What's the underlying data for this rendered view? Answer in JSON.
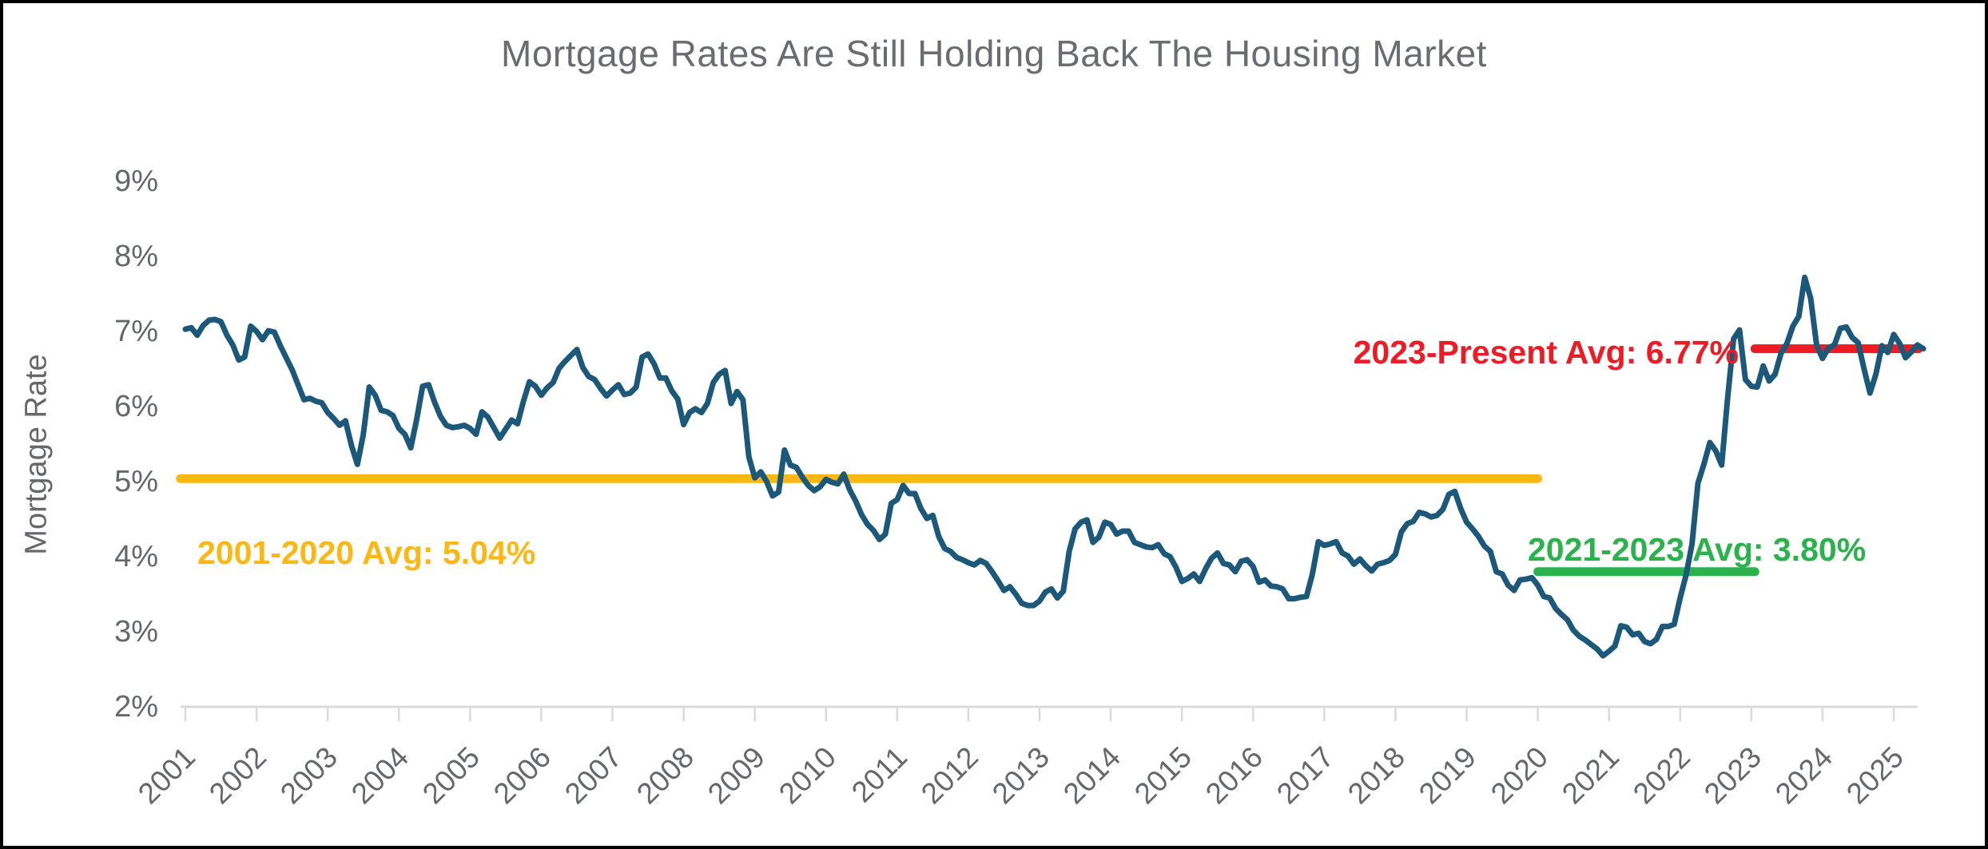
{
  "title": "Mortgage Rates Are Still Holding Back The Housing Market",
  "y_axis": {
    "label": "Mortgage Rate"
  },
  "chart_data": {
    "type": "line",
    "title": "Mortgage Rates Are Still Holding Back The Housing Market",
    "xlabel": "",
    "ylabel": "Mortgage Rate",
    "ylim": [
      2,
      9
    ],
    "grid": false,
    "legend": "none",
    "y_ticks": [
      {
        "label": "9%",
        "value": 9
      },
      {
        "label": "8%",
        "value": 8
      },
      {
        "label": "7%",
        "value": 7
      },
      {
        "label": "6%",
        "value": 6
      },
      {
        "label": "5%",
        "value": 5
      },
      {
        "label": "4%",
        "value": 4
      },
      {
        "label": "3%",
        "value": 3
      },
      {
        "label": "2%",
        "value": 2
      }
    ],
    "x_ticks": [
      "2001",
      "2002",
      "2003",
      "2004",
      "2005",
      "2006",
      "2007",
      "2008",
      "2009",
      "2010",
      "2011",
      "2012",
      "2013",
      "2014",
      "2015",
      "2016",
      "2017",
      "2018",
      "2019",
      "2020",
      "2021",
      "2022",
      "2023",
      "2024",
      "2025"
    ],
    "series": [
      {
        "name": "Mortgage Rate",
        "color": "#1B587A",
        "start_year": 2001,
        "points_per_year": 12,
        "values": [
          7.03,
          7.05,
          6.95,
          7.08,
          7.15,
          7.16,
          7.13,
          6.95,
          6.82,
          6.62,
          6.66,
          7.07,
          7.0,
          6.89,
          7.01,
          6.99,
          6.81,
          6.65,
          6.49,
          6.29,
          6.09,
          6.11,
          6.07,
          6.05,
          5.92,
          5.84,
          5.75,
          5.81,
          5.48,
          5.23,
          5.63,
          6.26,
          6.15,
          5.95,
          5.93,
          5.88,
          5.71,
          5.63,
          5.45,
          5.83,
          6.27,
          6.29,
          6.06,
          5.87,
          5.75,
          5.72,
          5.73,
          5.75,
          5.71,
          5.63,
          5.93,
          5.86,
          5.72,
          5.58,
          5.7,
          5.82,
          5.77,
          6.07,
          6.33,
          6.27,
          6.15,
          6.25,
          6.32,
          6.51,
          6.6,
          6.68,
          6.76,
          6.52,
          6.4,
          6.36,
          6.24,
          6.14,
          6.22,
          6.29,
          6.16,
          6.18,
          6.26,
          6.66,
          6.7,
          6.57,
          6.38,
          6.38,
          6.21,
          6.1,
          5.76,
          5.92,
          5.97,
          5.92,
          6.04,
          6.32,
          6.43,
          6.48,
          6.04,
          6.2,
          6.09,
          5.33,
          5.05,
          5.13,
          5.0,
          4.81,
          4.86,
          5.42,
          5.22,
          5.19,
          5.06,
          4.95,
          4.88,
          4.93,
          5.03,
          4.99,
          4.97,
          5.1,
          4.89,
          4.74,
          4.56,
          4.43,
          4.35,
          4.23,
          4.3,
          4.71,
          4.76,
          4.95,
          4.84,
          4.84,
          4.64,
          4.51,
          4.55,
          4.27,
          4.11,
          4.07,
          3.99,
          3.96,
          3.92,
          3.89,
          3.95,
          3.91,
          3.8,
          3.68,
          3.55,
          3.6,
          3.5,
          3.38,
          3.35,
          3.35,
          3.41,
          3.53,
          3.57,
          3.45,
          3.54,
          4.07,
          4.37,
          4.46,
          4.49,
          4.19,
          4.26,
          4.46,
          4.43,
          4.3,
          4.34,
          4.34,
          4.19,
          4.16,
          4.13,
          4.12,
          4.16,
          4.04,
          4.0,
          3.86,
          3.67,
          3.71,
          3.77,
          3.67,
          3.84,
          3.98,
          4.05,
          3.91,
          3.89,
          3.8,
          3.94,
          3.96,
          3.87,
          3.66,
          3.69,
          3.61,
          3.6,
          3.57,
          3.44,
          3.44,
          3.46,
          3.47,
          3.77,
          4.2,
          4.15,
          4.17,
          4.2,
          4.05,
          4.01,
          3.9,
          3.97,
          3.88,
          3.81,
          3.9,
          3.92,
          3.95,
          4.03,
          4.33,
          4.44,
          4.47,
          4.59,
          4.57,
          4.53,
          4.55,
          4.63,
          4.83,
          4.87,
          4.64,
          4.46,
          4.37,
          4.27,
          4.14,
          4.07,
          3.8,
          3.77,
          3.62,
          3.55,
          3.69,
          3.7,
          3.72,
          3.62,
          3.47,
          3.45,
          3.31,
          3.23,
          3.16,
          3.02,
          2.94,
          2.89,
          2.83,
          2.77,
          2.68,
          2.74,
          2.81,
          3.08,
          3.06,
          2.96,
          2.98,
          2.87,
          2.84,
          2.9,
          3.07,
          3.07,
          3.1,
          3.45,
          3.76,
          4.17,
          4.98,
          5.23,
          5.52,
          5.41,
          5.22,
          6.11,
          6.9,
          7.02,
          6.36,
          6.27,
          6.26,
          6.54,
          6.34,
          6.43,
          6.71,
          6.84,
          7.07,
          7.2,
          7.72,
          7.44,
          6.82,
          6.64,
          6.78,
          6.82,
          7.04,
          7.06,
          6.92,
          6.85,
          6.5,
          6.18,
          6.43,
          6.81,
          6.72,
          6.96,
          6.84,
          6.65,
          6.73,
          6.82,
          6.77
        ]
      }
    ],
    "avg_lines": [
      {
        "label": "2001-2020 Avg: 5.04%",
        "value": 5.04,
        "span_years": [
          2000.93,
          2020.0
        ],
        "color": "#FDB714"
      },
      {
        "label": "2021-2023 Avg: 3.80%",
        "value": 3.8,
        "span_years": [
          2020.0,
          2023.05
        ],
        "color": "#2BB24C"
      },
      {
        "label": "2023-Present Avg: 6.77%",
        "value": 6.77,
        "span_years": [
          2023.05,
          2025.35
        ],
        "color": "#ED1C24"
      }
    ]
  }
}
